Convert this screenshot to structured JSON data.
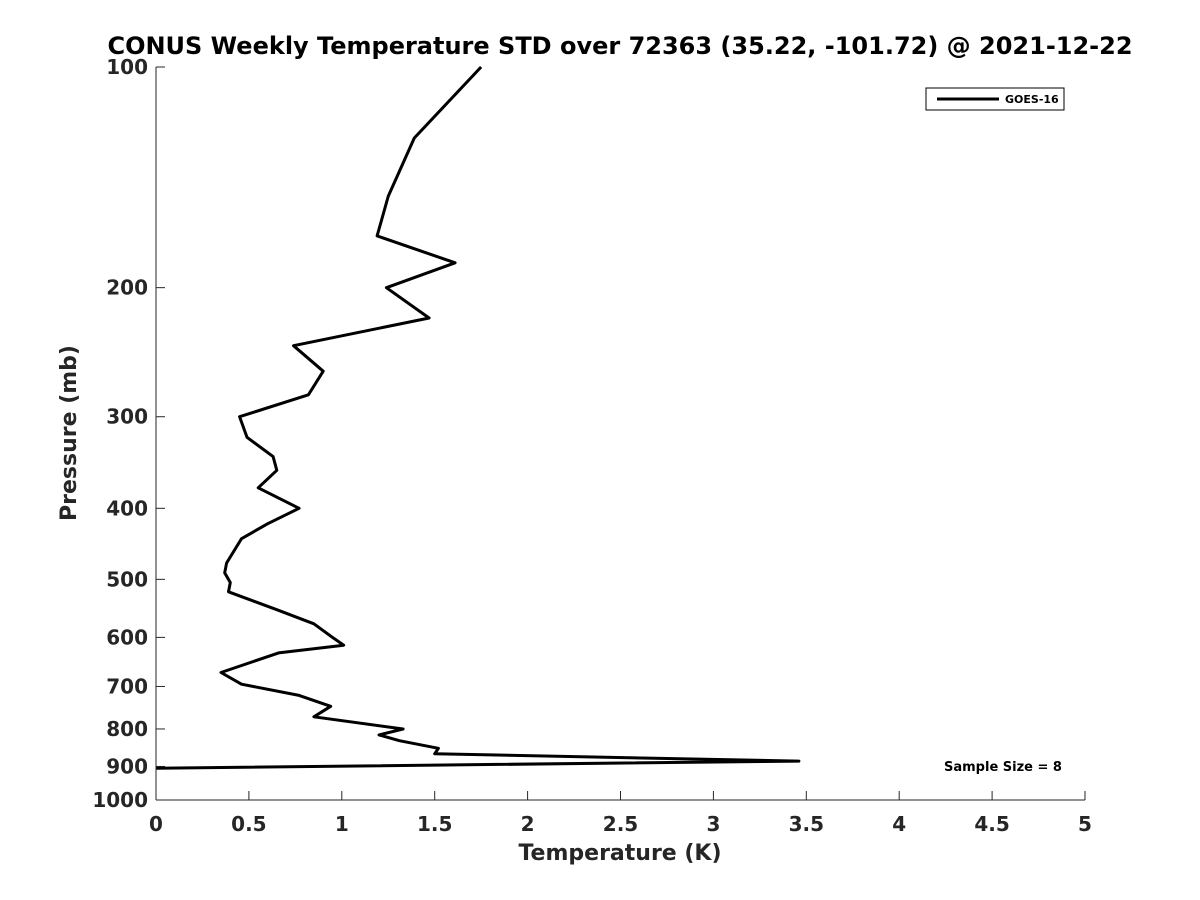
{
  "chart_data": {
    "type": "line",
    "title": "CONUS Weekly Temperature STD over 72363 (35.22, -101.72) @ 2021-12-22",
    "xlabel": "Temperature (K)",
    "ylabel": "Pressure (mb)",
    "xlim": [
      0,
      5
    ],
    "ylim": [
      100,
      1000
    ],
    "y_scale": "log",
    "y_inverted": true,
    "x_ticks": [
      "0",
      "0.5",
      "1",
      "1.5",
      "2",
      "2.5",
      "3",
      "3.5",
      "4",
      "4.5",
      "5"
    ],
    "y_ticks": [
      "100",
      "200",
      "300",
      "400",
      "500",
      "600",
      "700",
      "800",
      "900",
      "1000"
    ],
    "grid": false,
    "legend": {
      "position": "top-right",
      "entries": [
        "GOES-16"
      ]
    },
    "annotation": "Sample Size = 8",
    "colors": {
      "line": "#000000"
    },
    "series": [
      {
        "name": "GOES-16",
        "x": [
          1.75,
          1.39,
          1.25,
          1.19,
          1.61,
          1.24,
          1.47,
          0.74,
          0.9,
          0.82,
          0.45,
          0.49,
          0.63,
          0.65,
          0.55,
          0.77,
          0.6,
          0.46,
          0.38,
          0.37,
          0.4,
          0.39,
          0.65,
          0.85,
          0.95,
          1.01,
          0.66,
          0.35,
          0.46,
          0.77,
          0.94,
          0.85,
          1.33,
          1.2,
          1.31,
          1.52,
          1.5,
          3.46,
          0.0
        ],
        "y": [
          100,
          125,
          150,
          170,
          185,
          200,
          220,
          240,
          260,
          280,
          300,
          320,
          340,
          355,
          375,
          400,
          420,
          440,
          475,
          490,
          505,
          520,
          550,
          575,
          600,
          615,
          630,
          670,
          695,
          720,
          745,
          770,
          800,
          815,
          830,
          850,
          865,
          885,
          905
        ]
      }
    ]
  }
}
